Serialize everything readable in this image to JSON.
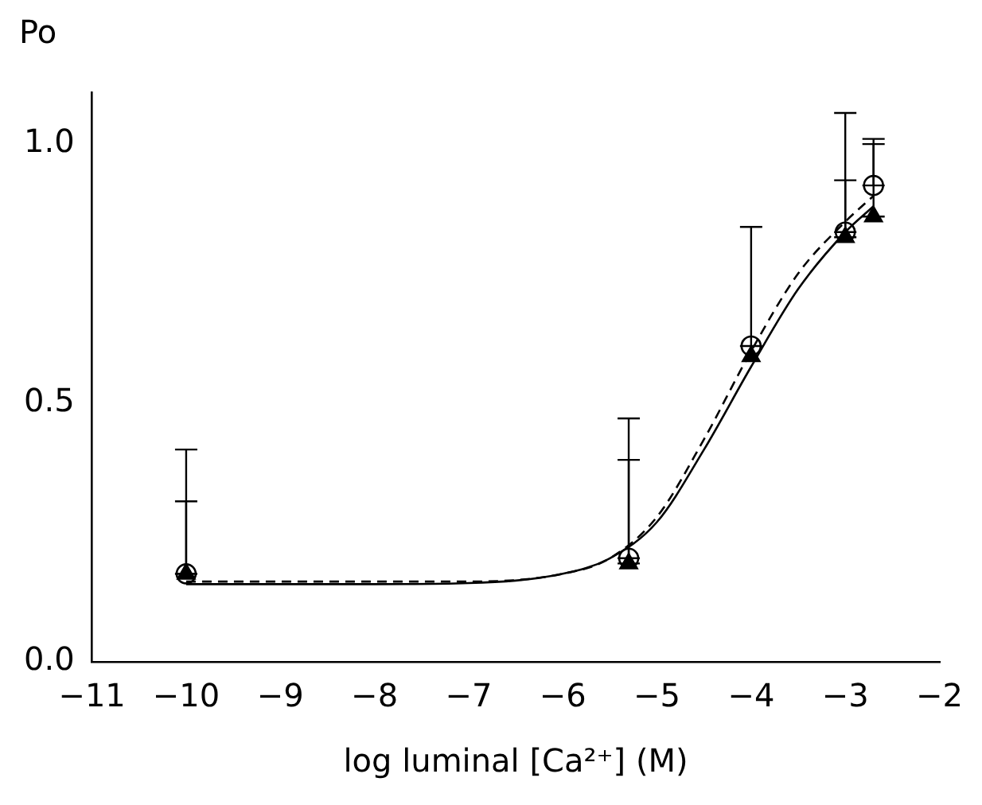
{
  "chart_data": {
    "type": "scatter",
    "xlabel": "log luminal [Ca²⁺] (M)",
    "ylabel": "Po",
    "xlim": [
      -11,
      -2
    ],
    "xticks": [
      -11,
      -10,
      -9,
      -8,
      -7,
      -6,
      -5,
      -4,
      -3,
      -2
    ],
    "ylim": [
      0,
      1.1
    ],
    "yticks": [
      {
        "value": 0,
        "label": "0.0"
      },
      {
        "value": 0.5,
        "label": "0.5"
      },
      {
        "value": 1,
        "label": "1.0"
      }
    ],
    "grid": false,
    "legend": false,
    "series": [
      {
        "type": "line",
        "color": "#000000",
        "line_style": "solid",
        "marker": "none",
        "x": [
          -10,
          -8,
          -7,
          -6,
          -5.5,
          -5,
          -4.5,
          -4,
          -3.5,
          -3,
          -2.7
        ],
        "values": [
          0.15,
          0.15,
          0.152,
          0.17,
          0.2,
          0.27,
          0.41,
          0.57,
          0.72,
          0.83,
          0.88
        ]
      },
      {
        "type": "line",
        "color": "#000000",
        "line_style": "dashed",
        "marker": "none",
        "x": [
          -10,
          -7,
          -6,
          -5.5,
          -5,
          -4.5,
          -4,
          -3.5,
          -3,
          -2.7
        ],
        "values": [
          0.155,
          0.155,
          0.17,
          0.2,
          0.28,
          0.43,
          0.6,
          0.75,
          0.85,
          0.9
        ]
      },
      {
        "type": "scatter",
        "color": "#000000",
        "marker": "triangle",
        "x": [
          -10,
          -5.3,
          -4,
          -3,
          -2.7
        ],
        "values": [
          0.17,
          0.19,
          0.59,
          0.82,
          0.86
        ],
        "errors": [
          [
            0.17,
            0.31
          ],
          [
            0.19,
            0.39
          ],
          null,
          [
            0.82,
            0.93
          ],
          [
            0.86,
            1.0
          ]
        ]
      },
      {
        "type": "scatter",
        "color": "#000000",
        "marker": "circle",
        "x": [
          -10,
          -5.3,
          -4,
          -3,
          -2.7
        ],
        "values": [
          0.17,
          0.2,
          0.61,
          0.83,
          0.92
        ],
        "errors": [
          [
            0.17,
            0.41
          ],
          [
            0.2,
            0.47
          ],
          [
            0.61,
            0.84
          ],
          [
            0.83,
            1.06
          ],
          [
            0.92,
            1.01
          ]
        ]
      }
    ]
  }
}
